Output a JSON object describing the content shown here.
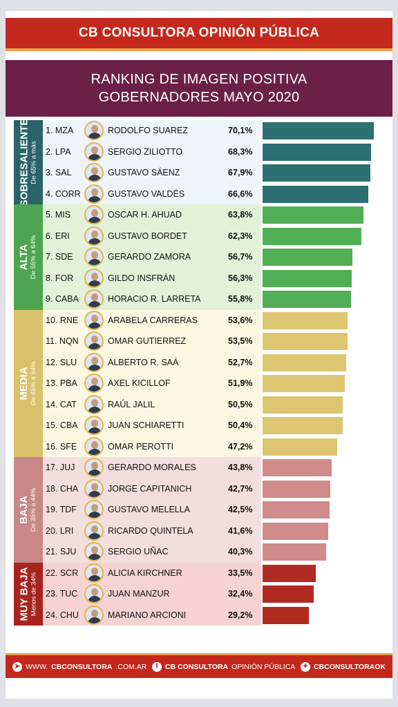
{
  "header": {
    "brand": "CB CONSULTORA OPINIÓN PÚBLICA"
  },
  "title": {
    "line1": "RANKING DE IMAGEN POSITIVA",
    "line2": "GOBERNADORES MAYO 2020"
  },
  "chart_data": {
    "type": "bar",
    "orientation": "horizontal",
    "title": "RANKING DE IMAGEN POSITIVA GOBERNADORES MAYO 2020",
    "xlim": [
      0,
      75
    ],
    "grid": false,
    "categories": [
      "1. MZA",
      "2. LPA",
      "3. SAL",
      "4. CORR",
      "5. MIS",
      "6. ERI",
      "7. SDE",
      "8. FOR",
      "9. CABA",
      "10. RNE",
      "11. NQN",
      "12. SLU",
      "13. PBA",
      "14. CAT",
      "15. CBA",
      "16. SFE",
      "17. JUJ",
      "18. CHA",
      "19. TDF",
      "20. LRI",
      "21. SJU",
      "22. SCR",
      "23. TUC",
      "24. CHU"
    ],
    "names": [
      "RODOLFO SUAREZ",
      "SERGIO ZILIOTTO",
      "GUSTAVO SÁENZ",
      "GUSTAVO VALDÉS",
      "OSCAR H. AHUAD",
      "GUSTAVO BORDET",
      "GERARDO ZAMORA",
      "GILDO INSFRÁN",
      "HORACIO R. LARRETA",
      "ARABELA CARRERAS",
      "OMAR GUTIERREZ",
      "ALBERTO R. SAÁ",
      "AXEL KICILLOF",
      "RAÚL JALIL",
      "JUAN SCHIARETTI",
      "OMAR PEROTTI",
      "GERARDO MORALES",
      "JORGE CAPITANICH",
      "GUSTAVO MELELLA",
      "RICARDO QUINTELA",
      "SERGIO UÑAC",
      "ALICIA KIRCHNER",
      "JUAN MANZUR",
      "MARIANO ARCIONI"
    ],
    "values": [
      70.1,
      68.3,
      67.9,
      66.6,
      63.8,
      62.3,
      56.7,
      56.3,
      55.8,
      53.6,
      53.5,
      52.7,
      51.9,
      50.5,
      50.4,
      47.2,
      43.8,
      42.7,
      42.5,
      41.6,
      40.3,
      33.5,
      32.4,
      29.2
    ],
    "value_labels": [
      "70,1%",
      "68,3%",
      "67,9%",
      "66,6%",
      "63,8%",
      "62,3%",
      "56,7%",
      "56,3%",
      "55,8%",
      "53,6%",
      "53,5%",
      "52,7%",
      "51,9%",
      "50,5%",
      "50,4%",
      "47,2%",
      "43,8%",
      "42,7%",
      "42,5%",
      "41,6%",
      "40,3%",
      "33,5%",
      "32,4%",
      "29,2%"
    ],
    "bands": [
      {
        "name": "SOBRESALIENTE",
        "range": "De 65% a más",
        "start": 0,
        "count": 4,
        "bar_color": "#2e6f72",
        "bg_color": "#eef4fa",
        "label_color": "#2a6468"
      },
      {
        "name": "ALTA",
        "range": "De 55% a 64%",
        "start": 4,
        "count": 5,
        "bar_color": "#52ae54",
        "bg_color": "#e2f1d8",
        "label_color": "#4ea54f"
      },
      {
        "name": "MEDIA",
        "range": "De 45% a 54%",
        "start": 9,
        "count": 7,
        "bar_color": "#dcc672",
        "bg_color": "#fcf7e3",
        "label_color": "#d9c16b"
      },
      {
        "name": "BAJA",
        "range": "De 35% a 44%",
        "start": 16,
        "count": 5,
        "bar_color": "#cf8a8a",
        "bg_color": "#f3dede",
        "label_color": "#c98787"
      },
      {
        "name": "MUY BAJA",
        "range": "Menos de 34%",
        "start": 21,
        "count": 3,
        "bar_color": "#b12a22",
        "bg_color": "#f5d3d3",
        "label_color": "#a8231d"
      }
    ]
  },
  "footer": {
    "web_prefix": "WWW.",
    "web_bold": "CBCONSULTORA",
    "web_suffix": ".COM.AR",
    "fb_bold": "CB CONSULTORA",
    "fb_regular": "OPINIÓN PÚBLICA",
    "tw_bold": "CBCONSULTORAOK"
  },
  "icons": {
    "web": "cursor-icon",
    "facebook": "facebook-icon",
    "twitter": "twitter-icon"
  }
}
